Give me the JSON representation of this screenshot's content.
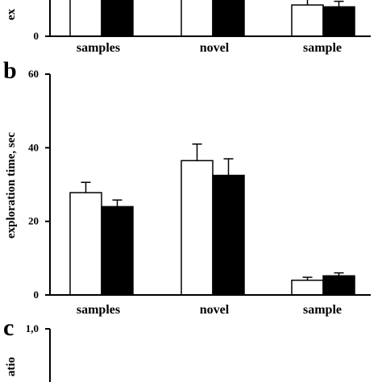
{
  "panel_labels": {
    "b": "b",
    "c": "c"
  },
  "chart_data": [
    {
      "panel": "a",
      "type": "bar",
      "title": "",
      "xlabel": "",
      "ylabel": "ex",
      "ylim": [
        0,
        60
      ],
      "visible_yticks": [
        0
      ],
      "categories": [
        "samples",
        "novel",
        "sample"
      ],
      "series": [
        {
          "fill": "#ffffff",
          "values": [
            null,
            null,
            8.5
          ],
          "errors": [
            null,
            null,
            2.0
          ]
        },
        {
          "fill": "#000000",
          "values": [
            null,
            null,
            8.0
          ],
          "errors": [
            null,
            null,
            1.5
          ]
        }
      ]
    },
    {
      "panel": "b",
      "type": "bar",
      "title": "",
      "xlabel": "",
      "ylabel": "exploration time, sec",
      "ylim": [
        0,
        60
      ],
      "yticks": [
        0,
        20,
        40,
        60
      ],
      "categories": [
        "samples",
        "novel",
        "sample"
      ],
      "series": [
        {
          "fill": "#ffffff",
          "values": [
            27.8,
            36.5,
            4.0
          ],
          "errors": [
            2.8,
            4.5,
            0.8
          ]
        },
        {
          "fill": "#000000",
          "values": [
            24.0,
            32.5,
            5.2
          ],
          "errors": [
            1.8,
            4.5,
            0.8
          ]
        }
      ]
    },
    {
      "panel": "c",
      "type": "bar",
      "title": "",
      "xlabel": "",
      "ylabel": "atio",
      "yticks": [
        "1,0"
      ]
    }
  ]
}
